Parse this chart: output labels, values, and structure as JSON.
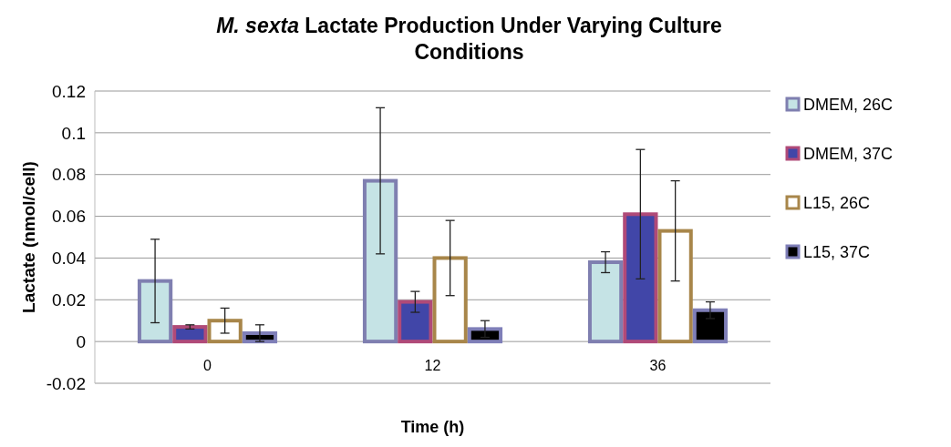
{
  "chart_data": {
    "type": "bar",
    "title": "M. sexta Lactate Production Under Varying Culture Conditions",
    "xlabel": "Time (h)",
    "ylabel": "Lactate (nmol/cell)",
    "categories": [
      "0",
      "12",
      "36"
    ],
    "series": [
      {
        "name": "DMEM, 26C",
        "color": "#c5e3e5",
        "values": [
          0.029,
          0.077,
          0.038
        ],
        "errors": [
          0.02,
          0.035,
          0.005
        ]
      },
      {
        "name": "DMEM, 37C",
        "color": "#4146a8",
        "values": [
          0.007,
          0.019,
          0.061
        ],
        "errors": [
          0.001,
          0.005,
          0.031
        ]
      },
      {
        "name": "L15, 26C",
        "color": "#ffffff",
        "values": [
          0.01,
          0.04,
          0.053
        ],
        "errors": [
          0.006,
          0.018,
          0.024
        ]
      },
      {
        "name": "L15, 37C",
        "color": "#000000",
        "values": [
          0.004,
          0.006,
          0.015
        ],
        "errors": [
          0.004,
          0.004,
          0.004
        ]
      }
    ],
    "ylim": [
      -0.02,
      0.12
    ],
    "yticks": [
      -0.02,
      0,
      0.02,
      0.04,
      0.06,
      0.08,
      0.1,
      0.12
    ],
    "grid": "y",
    "legend": "right"
  }
}
